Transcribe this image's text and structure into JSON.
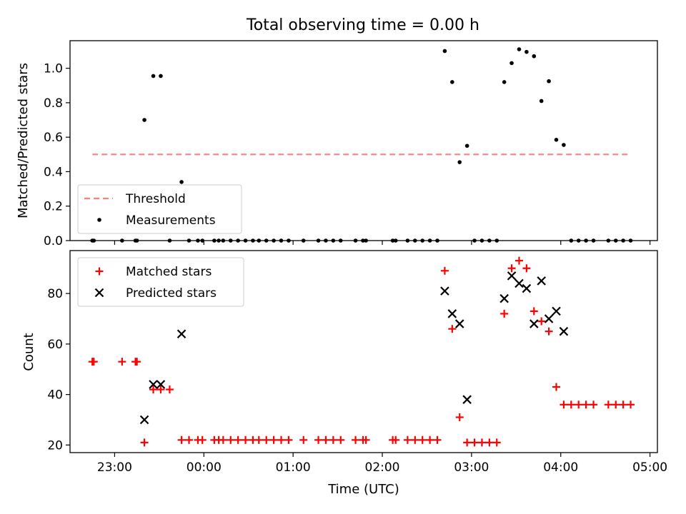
{
  "figure": {
    "title": "Total observing time = 0.00 h"
  },
  "chart_data": [
    {
      "type": "scatter",
      "ylabel": "Matched/Predicted stars",
      "xlabel": "",
      "xlim": [
        "22:30",
        "05:05"
      ],
      "ylim": [
        0,
        1.16
      ],
      "y_ticks": [
        0.0,
        0.2,
        0.4,
        0.6,
        0.8,
        1.0
      ],
      "y_tick_labels": [
        "0.0",
        "0.2",
        "0.4",
        "0.6",
        "0.8",
        "1.0"
      ],
      "x_ticks": [
        "23:00",
        "00:00",
        "01:00",
        "02:00",
        "03:00",
        "04:00",
        "05:00"
      ],
      "x_tick_labels_visible": false,
      "grid": false,
      "legend": {
        "placement": "lower-left",
        "entries": [
          "Threshold",
          "Measurements"
        ]
      },
      "threshold": {
        "name": "Threshold",
        "value": 0.5,
        "x_start": "22:45",
        "x_end": "04:47",
        "color": "#ff7f7f",
        "style": "dashed"
      },
      "series": [
        {
          "name": "Measurements",
          "marker": "dot",
          "color": "#000000",
          "points": [
            [
              "22:45",
              0
            ],
            [
              "22:46",
              0
            ],
            [
              "23:05",
              0
            ],
            [
              "23:14",
              0
            ],
            [
              "23:15",
              0
            ],
            [
              "23:20",
              0.7
            ],
            [
              "23:26",
              0.955
            ],
            [
              "23:31",
              0.955
            ],
            [
              "23:37",
              0
            ],
            [
              "23:45",
              0.34
            ],
            [
              "23:50",
              0
            ],
            [
              "23:56",
              0
            ],
            [
              "23:59",
              0
            ],
            [
              "00:07",
              0
            ],
            [
              "00:10",
              0
            ],
            [
              "00:13",
              0
            ],
            [
              "00:18",
              0
            ],
            [
              "00:23",
              0
            ],
            [
              "00:28",
              0
            ],
            [
              "00:33",
              0
            ],
            [
              "00:37",
              0
            ],
            [
              "00:42",
              0
            ],
            [
              "00:47",
              0
            ],
            [
              "00:52",
              0
            ],
            [
              "00:57",
              0
            ],
            [
              "01:07",
              0
            ],
            [
              "01:17",
              0
            ],
            [
              "01:22",
              0
            ],
            [
              "01:27",
              0
            ],
            [
              "01:32",
              0
            ],
            [
              "01:42",
              0
            ],
            [
              "01:47",
              0
            ],
            [
              "01:49",
              0
            ],
            [
              "02:07",
              0
            ],
            [
              "02:09",
              0
            ],
            [
              "02:17",
              0
            ],
            [
              "02:22",
              0
            ],
            [
              "02:27",
              0
            ],
            [
              "02:32",
              0
            ],
            [
              "02:37",
              0
            ],
            [
              "02:42",
              1.1
            ],
            [
              "02:47",
              0.92
            ],
            [
              "02:52",
              0.455
            ],
            [
              "02:57",
              0.55
            ],
            [
              "03:02",
              0
            ],
            [
              "03:07",
              0
            ],
            [
              "03:12",
              0
            ],
            [
              "03:17",
              0
            ],
            [
              "03:22",
              0.92
            ],
            [
              "03:27",
              1.03
            ],
            [
              "03:32",
              1.11
            ],
            [
              "03:37",
              1.095
            ],
            [
              "03:42",
              1.07
            ],
            [
              "03:47",
              0.81
            ],
            [
              "03:52",
              0.925
            ],
            [
              "03:57",
              0.585
            ],
            [
              "04:02",
              0.555
            ],
            [
              "04:07",
              0
            ],
            [
              "04:12",
              0
            ],
            [
              "04:17",
              0
            ],
            [
              "04:22",
              0
            ],
            [
              "04:32",
              0
            ],
            [
              "04:37",
              0
            ],
            [
              "04:42",
              0
            ],
            [
              "04:47",
              0
            ]
          ]
        }
      ]
    },
    {
      "type": "scatter",
      "ylabel": "Count",
      "xlabel": "Time (UTC)",
      "xlim": [
        "22:30",
        "05:05"
      ],
      "ylim": [
        17,
        97
      ],
      "y_ticks": [
        20,
        40,
        60,
        80
      ],
      "y_tick_labels": [
        "20",
        "40",
        "60",
        "80"
      ],
      "x_ticks": [
        "23:00",
        "00:00",
        "01:00",
        "02:00",
        "03:00",
        "04:00",
        "05:00"
      ],
      "x_tick_labels": [
        "23:00",
        "00:00",
        "01:00",
        "02:00",
        "03:00",
        "04:00",
        "05:00"
      ],
      "grid": false,
      "legend": {
        "placement": "upper-left",
        "entries": [
          "Matched stars",
          "Predicted stars"
        ]
      },
      "series": [
        {
          "name": "Matched stars",
          "marker": "plus",
          "color": "#ff0000",
          "points": [
            [
              "22:45",
              53
            ],
            [
              "22:46",
              53
            ],
            [
              "23:05",
              53
            ],
            [
              "23:14",
              53
            ],
            [
              "23:15",
              53
            ],
            [
              "23:20",
              21
            ],
            [
              "23:26",
              42
            ],
            [
              "23:31",
              42
            ],
            [
              "23:37",
              42
            ],
            [
              "23:45",
              22
            ],
            [
              "23:50",
              22
            ],
            [
              "23:56",
              22
            ],
            [
              "23:59",
              22
            ],
            [
              "00:07",
              22
            ],
            [
              "00:10",
              22
            ],
            [
              "00:13",
              22
            ],
            [
              "00:18",
              22
            ],
            [
              "00:23",
              22
            ],
            [
              "00:28",
              22
            ],
            [
              "00:33",
              22
            ],
            [
              "00:37",
              22
            ],
            [
              "00:42",
              22
            ],
            [
              "00:47",
              22
            ],
            [
              "00:52",
              22
            ],
            [
              "00:57",
              22
            ],
            [
              "01:07",
              22
            ],
            [
              "01:17",
              22
            ],
            [
              "01:22",
              22
            ],
            [
              "01:27",
              22
            ],
            [
              "01:32",
              22
            ],
            [
              "01:42",
              22
            ],
            [
              "01:47",
              22
            ],
            [
              "01:49",
              22
            ],
            [
              "02:07",
              22
            ],
            [
              "02:09",
              22
            ],
            [
              "02:17",
              22
            ],
            [
              "02:22",
              22
            ],
            [
              "02:27",
              22
            ],
            [
              "02:32",
              22
            ],
            [
              "02:37",
              22
            ],
            [
              "02:42",
              89
            ],
            [
              "02:47",
              66
            ],
            [
              "02:52",
              31
            ],
            [
              "02:57",
              21
            ],
            [
              "03:02",
              21
            ],
            [
              "03:07",
              21
            ],
            [
              "03:12",
              21
            ],
            [
              "03:17",
              21
            ],
            [
              "03:22",
              72
            ],
            [
              "03:27",
              90
            ],
            [
              "03:32",
              93
            ],
            [
              "03:37",
              90
            ],
            [
              "03:42",
              73
            ],
            [
              "03:47",
              69
            ],
            [
              "03:52",
              65
            ],
            [
              "03:57",
              43
            ],
            [
              "04:02",
              36
            ],
            [
              "04:07",
              36
            ],
            [
              "04:12",
              36
            ],
            [
              "04:17",
              36
            ],
            [
              "04:22",
              36
            ],
            [
              "04:32",
              36
            ],
            [
              "04:37",
              36
            ],
            [
              "04:42",
              36
            ],
            [
              "04:47",
              36
            ]
          ]
        },
        {
          "name": "Predicted stars",
          "marker": "x",
          "color": "#000000",
          "points": [
            [
              "23:20",
              30
            ],
            [
              "23:26",
              44
            ],
            [
              "23:31",
              44
            ],
            [
              "23:45",
              64
            ],
            [
              "02:42",
              81
            ],
            [
              "02:47",
              72
            ],
            [
              "02:52",
              68
            ],
            [
              "02:57",
              38
            ],
            [
              "03:22",
              78
            ],
            [
              "03:27",
              87
            ],
            [
              "03:32",
              84
            ],
            [
              "03:37",
              82
            ],
            [
              "03:42",
              68
            ],
            [
              "03:47",
              85
            ],
            [
              "03:52",
              70
            ],
            [
              "03:57",
              73
            ],
            [
              "04:02",
              65
            ]
          ]
        }
      ]
    }
  ]
}
